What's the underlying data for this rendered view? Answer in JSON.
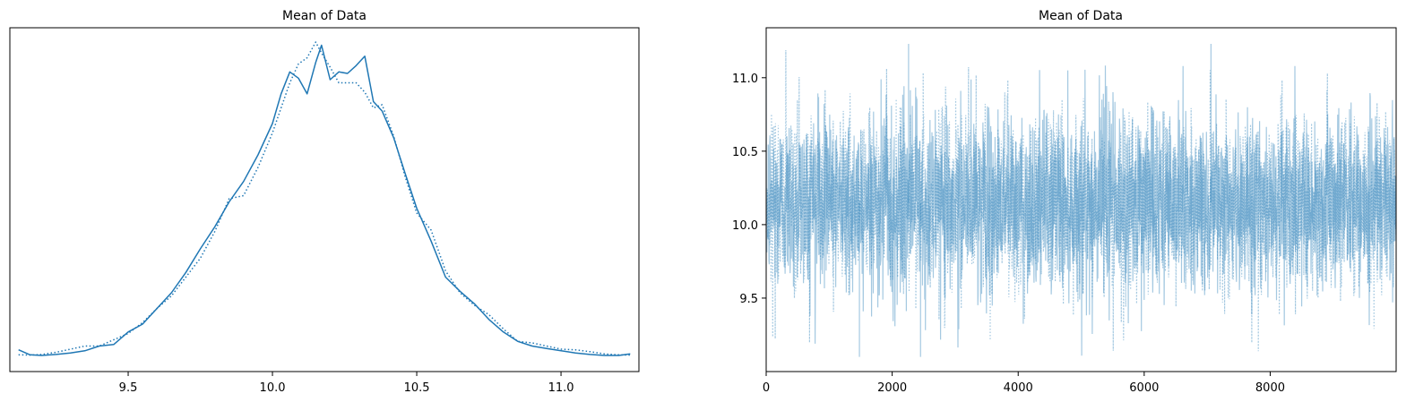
{
  "chart_data": [
    {
      "type": "line",
      "title": "Mean of Data",
      "xlabel": "",
      "ylabel": "",
      "xlim": [
        9.09,
        11.27
      ],
      "x_ticks": [
        9.5,
        10.0,
        10.5,
        11.0
      ],
      "x_tick_labels": [
        "9.5",
        "10.0",
        "10.5",
        "11.0"
      ],
      "y_ticks": [],
      "grid": false,
      "series": [
        {
          "style": "solid",
          "color": "#1f77b4",
          "x": [
            9.12,
            9.16,
            9.2,
            9.25,
            9.3,
            9.35,
            9.4,
            9.45,
            9.5,
            9.55,
            9.6,
            9.65,
            9.7,
            9.75,
            9.8,
            9.85,
            9.9,
            9.95,
            10.0,
            10.03,
            10.06,
            10.09,
            10.12,
            10.15,
            10.17,
            10.2,
            10.23,
            10.26,
            10.29,
            10.32,
            10.35,
            10.38,
            10.42,
            10.46,
            10.5,
            10.55,
            10.6,
            10.65,
            10.7,
            10.75,
            10.8,
            10.85,
            10.9,
            10.95,
            11.0,
            11.05,
            11.1,
            11.15,
            11.2,
            11.24
          ],
          "y": [
            0.018,
            0.002,
            0.0,
            0.003,
            0.008,
            0.015,
            0.03,
            0.035,
            0.075,
            0.1,
            0.15,
            0.2,
            0.265,
            0.34,
            0.41,
            0.49,
            0.555,
            0.64,
            0.74,
            0.835,
            0.905,
            0.885,
            0.835,
            0.935,
            0.99,
            0.88,
            0.905,
            0.9,
            0.925,
            0.955,
            0.81,
            0.78,
            0.695,
            0.58,
            0.47,
            0.365,
            0.25,
            0.205,
            0.165,
            0.115,
            0.075,
            0.045,
            0.03,
            0.022,
            0.015,
            0.008,
            0.003,
            0.0,
            0.0,
            0.005
          ]
        },
        {
          "style": "dotted",
          "color": "#1f77b4",
          "x": [
            9.12,
            9.16,
            9.2,
            9.25,
            9.3,
            9.35,
            9.4,
            9.45,
            9.5,
            9.55,
            9.6,
            9.65,
            9.7,
            9.75,
            9.8,
            9.85,
            9.9,
            9.95,
            10.0,
            10.03,
            10.06,
            10.09,
            10.12,
            10.15,
            10.17,
            10.2,
            10.23,
            10.26,
            10.29,
            10.32,
            10.35,
            10.38,
            10.42,
            10.46,
            10.5,
            10.55,
            10.6,
            10.65,
            10.7,
            10.75,
            10.8,
            10.85,
            10.9,
            10.95,
            11.0,
            11.05,
            11.1,
            11.15,
            11.2,
            11.24
          ],
          "y": [
            0.002,
            0.001,
            0.003,
            0.01,
            0.02,
            0.03,
            0.03,
            0.05,
            0.07,
            0.105,
            0.15,
            0.19,
            0.25,
            0.31,
            0.395,
            0.5,
            0.51,
            0.6,
            0.71,
            0.79,
            0.87,
            0.93,
            0.95,
            1.0,
            0.965,
            0.92,
            0.87,
            0.87,
            0.87,
            0.84,
            0.79,
            0.8,
            0.7,
            0.57,
            0.455,
            0.4,
            0.27,
            0.2,
            0.16,
            0.13,
            0.085,
            0.045,
            0.04,
            0.03,
            0.02,
            0.018,
            0.012,
            0.005,
            0.002,
            0.001
          ]
        }
      ]
    },
    {
      "type": "line",
      "title": "Mean of Data",
      "xlabel": "",
      "ylabel": "",
      "xlim": [
        0,
        9999
      ],
      "ylim": [
        9.0,
        11.34
      ],
      "x_ticks": [
        0,
        2000,
        4000,
        6000,
        8000
      ],
      "x_tick_labels": [
        "0",
        "2000",
        "4000",
        "6000",
        "8000"
      ],
      "y_ticks": [
        9.5,
        10.0,
        10.5,
        11.0
      ],
      "y_tick_labels": [
        "9.5",
        "10.0",
        "10.5",
        "11.0"
      ],
      "grid": false,
      "series": [
        {
          "style": "solid",
          "color": "#1f77b4",
          "opacity": 0.4,
          "n_points": 10000,
          "mean": 10.15,
          "std": 0.3,
          "min": 9.1,
          "max": 11.23
        },
        {
          "style": "dotted",
          "color": "#1f77b4",
          "opacity": 0.4,
          "n_points": 10000,
          "mean": 10.15,
          "std": 0.3,
          "min": 9.1,
          "max": 11.23
        }
      ]
    }
  ]
}
